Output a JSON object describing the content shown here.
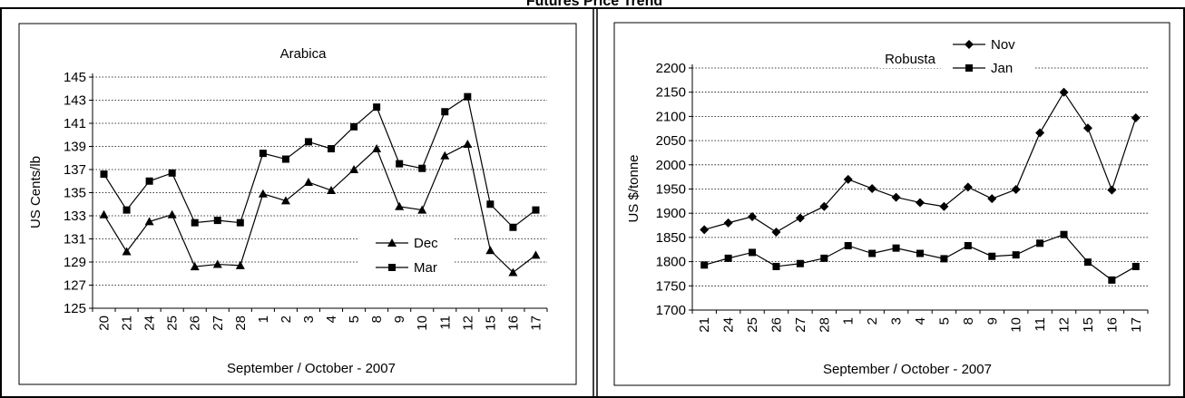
{
  "page_title": "Futures Price Trend",
  "chart_data": [
    {
      "type": "line",
      "title": "Arabica",
      "xlabel": "September / October - 2007",
      "ylabel": "US Cents/lb",
      "ylim": [
        125,
        145
      ],
      "yticks": [
        125,
        127,
        129,
        131,
        133,
        135,
        137,
        139,
        141,
        143,
        145
      ],
      "grid": "horizontal dotted",
      "legend_position": "bottom-right",
      "categories": [
        "20",
        "21",
        "24",
        "25",
        "26",
        "27",
        "28",
        "1",
        "2",
        "3",
        "4",
        "5",
        "8",
        "9",
        "10",
        "11",
        "12",
        "15",
        "16",
        "17"
      ],
      "series": [
        {
          "name": "Dec",
          "marker": "triangle",
          "values": [
            133.1,
            129.9,
            132.5,
            133.1,
            128.6,
            128.8,
            128.7,
            134.9,
            134.3,
            135.9,
            135.2,
            137.0,
            138.8,
            133.8,
            133.5,
            138.2,
            139.2,
            130.0,
            128.1,
            129.6
          ]
        },
        {
          "name": "Mar",
          "marker": "square",
          "values": [
            136.6,
            133.5,
            136.0,
            136.7,
            132.4,
            132.6,
            132.4,
            138.4,
            137.9,
            139.4,
            138.8,
            140.7,
            142.4,
            137.5,
            137.1,
            142.0,
            143.3,
            134.0,
            132.0,
            133.5
          ]
        }
      ]
    },
    {
      "type": "line",
      "title": "Robusta",
      "xlabel": "September / October - 2007",
      "ylabel": "US $/tonne",
      "ylim": [
        1700,
        2200
      ],
      "yticks": [
        1700,
        1750,
        1800,
        1850,
        1900,
        1950,
        2000,
        2050,
        2100,
        2150,
        2200
      ],
      "grid": "horizontal dotted",
      "legend_position": "top",
      "categories": [
        "21",
        "24",
        "25",
        "26",
        "27",
        "28",
        "1",
        "2",
        "3",
        "4",
        "5",
        "8",
        "9",
        "10",
        "11",
        "12",
        "15",
        "16",
        "17"
      ],
      "series": [
        {
          "name": "Nov",
          "marker": "diamond",
          "values": [
            1866,
            1880,
            1893,
            1861,
            1890,
            1914,
            1970,
            1951,
            1933,
            1922,
            1914,
            1954,
            1930,
            1949,
            2066,
            2150,
            2076,
            1948,
            2097
          ]
        },
        {
          "name": "Jan",
          "marker": "square",
          "values": [
            1793,
            1807,
            1819,
            1790,
            1796,
            1807,
            1833,
            1817,
            1828,
            1817,
            1806,
            1833,
            1811,
            1814,
            1838,
            1856,
            1799,
            1762,
            1790
          ]
        }
      ]
    }
  ]
}
